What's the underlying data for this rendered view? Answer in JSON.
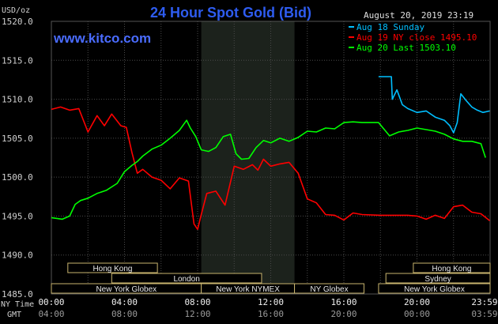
{
  "chart_data": {
    "type": "line",
    "title": "24 Hour Spot Gold (Bid)",
    "watermark": "www.kitco.com",
    "date_label": "August 20, 2019 23:19",
    "ylabel": "USD/oz",
    "ylim": [
      1485,
      1520
    ],
    "y_ticks": [
      "1520.0",
      "1515.0",
      "1510.0",
      "1505.0",
      "1500.0",
      "1495.0",
      "1490.0",
      "1485.0"
    ],
    "y_tick_values": [
      1520,
      1515,
      1510,
      1505,
      1500,
      1495,
      1490,
      1485
    ],
    "xlim": [
      0,
      24
    ],
    "x_row_label_ny": "NY Time",
    "x_row_label_gmt": "GMT",
    "x_ticks_ny": [
      "00:00",
      "04:00",
      "08:00",
      "12:00",
      "16:00",
      "20:00",
      "23:59"
    ],
    "x_ticks_gmt": [
      "04:00",
      "08:00",
      "12:00",
      "16:00",
      "20:00",
      "00:00",
      "03:59"
    ],
    "x_tick_hours": [
      0,
      4,
      8,
      12,
      16,
      20,
      23.98
    ],
    "shaded_hours": [
      8.2,
      13.3
    ],
    "legend": [
      {
        "label": "Aug 18 Sunday",
        "color": "#00bfff"
      },
      {
        "label": "Aug 19 NY close 1495.10",
        "color": "#ff0000"
      },
      {
        "label": "Aug 20 Last 1503.10",
        "color": "#00ff00"
      }
    ],
    "sessions": [
      {
        "label": "Hong Kong",
        "start": 0.9,
        "end": 5.8,
        "row": 0
      },
      {
        "label": "London",
        "start": 3.3,
        "end": 11.5,
        "row": 1
      },
      {
        "label": "New York Globex",
        "start": 0,
        "end": 8.2,
        "row": 2
      },
      {
        "label": "New York NYMEX",
        "start": 8.2,
        "end": 13.3,
        "row": 2
      },
      {
        "label": "NY Globex",
        "start": 13.3,
        "end": 17.1,
        "row": 2
      },
      {
        "label": "Hong Kong",
        "start": 19.8,
        "end": 24,
        "row": 0
      },
      {
        "label": "Sydney",
        "start": 18.3,
        "end": 24,
        "row": 1
      },
      {
        "label": "New York Globex",
        "start": 17.9,
        "end": 24,
        "row": 2
      }
    ],
    "session_border_color": "#c8b46e",
    "series": [
      {
        "name": "Aug 18 Sunday",
        "color": "#00bfff",
        "x": [
          17.9,
          18.6,
          18.65,
          18.9,
          19.2,
          19.5,
          20.0,
          20.5,
          21.0,
          21.5,
          21.8,
          22.0,
          22.2,
          22.4,
          22.7,
          23.0,
          23.3,
          23.6,
          23.98
        ],
        "y": [
          1512.9,
          1512.9,
          1510.0,
          1511.2,
          1509.3,
          1508.8,
          1508.3,
          1508.5,
          1507.7,
          1507.3,
          1506.6,
          1505.7,
          1507.0,
          1510.7,
          1509.8,
          1509.0,
          1508.6,
          1508.3,
          1508.5
        ]
      },
      {
        "name": "Aug 19 NY close 1495.10",
        "color": "#ff0000",
        "x": [
          0,
          0.5,
          1.0,
          1.5,
          2.0,
          2.5,
          2.9,
          3.3,
          3.8,
          4.1,
          4.4,
          4.7,
          5.0,
          5.5,
          6.0,
          6.5,
          7.0,
          7.5,
          7.8,
          8.0,
          8.2,
          8.5,
          9.0,
          9.5,
          10.0,
          10.5,
          11.0,
          11.3,
          11.6,
          12.0,
          12.5,
          13.0,
          13.5,
          14.0,
          14.5,
          15.0,
          15.5,
          16.0,
          16.5,
          17.0,
          18.0,
          19.0,
          19.5,
          20.0,
          20.5,
          21.0,
          21.5,
          22.0,
          22.5,
          23.0,
          23.5,
          23.98
        ],
        "y": [
          1508.7,
          1509.0,
          1508.6,
          1508.8,
          1505.8,
          1507.9,
          1506.6,
          1508.1,
          1506.6,
          1506.4,
          1503.2,
          1500.5,
          1501.0,
          1500.0,
          1499.6,
          1498.5,
          1499.9,
          1499.5,
          1494.0,
          1493.3,
          1495.2,
          1497.9,
          1498.2,
          1496.4,
          1501.4,
          1501.0,
          1501.6,
          1500.9,
          1502.3,
          1501.4,
          1501.7,
          1501.9,
          1500.5,
          1497.2,
          1496.7,
          1495.2,
          1495.1,
          1494.5,
          1495.4,
          1495.2,
          1495.1,
          1495.1,
          1495.1,
          1495.0,
          1494.6,
          1495.1,
          1494.7,
          1496.2,
          1496.4,
          1495.5,
          1495.3,
          1494.4
        ]
      },
      {
        "name": "Aug 20 Last 1503.10",
        "color": "#00ff00",
        "x": [
          0,
          0.6,
          1.0,
          1.3,
          1.6,
          2.0,
          2.5,
          3.0,
          3.6,
          4.0,
          4.4,
          4.7,
          5.0,
          5.5,
          6.0,
          6.5,
          7.0,
          7.4,
          7.6,
          7.9,
          8.2,
          8.6,
          9.0,
          9.4,
          9.8,
          10.1,
          10.4,
          10.8,
          11.2,
          11.6,
          12.0,
          12.5,
          13.0,
          13.5,
          14.0,
          14.5,
          15.0,
          15.5,
          16.0,
          16.5,
          17.0,
          17.5,
          17.9,
          18.5,
          19.0,
          19.5,
          20.0,
          20.5,
          21.0,
          21.5,
          22.0,
          22.5,
          23.0,
          23.5,
          23.75
        ],
        "y": [
          1494.8,
          1494.6,
          1495.0,
          1496.5,
          1497.0,
          1497.3,
          1497.9,
          1498.3,
          1499.2,
          1500.7,
          1501.5,
          1502.0,
          1502.7,
          1503.6,
          1504.1,
          1505.0,
          1506.0,
          1507.3,
          1506.3,
          1505.2,
          1503.5,
          1503.3,
          1503.8,
          1505.2,
          1505.5,
          1503.0,
          1502.3,
          1502.4,
          1503.8,
          1504.7,
          1504.4,
          1505.0,
          1504.6,
          1505.1,
          1505.9,
          1505.8,
          1506.3,
          1506.2,
          1507.0,
          1507.1,
          1507.0,
          1507.0,
          1507.0,
          1505.3,
          1505.8,
          1506.0,
          1506.3,
          1506.1,
          1505.9,
          1505.5,
          1504.9,
          1504.6,
          1504.6,
          1504.3,
          1502.5
        ]
      }
    ],
    "colors": {
      "title": "#2e5cf0",
      "watermark": "#4a6cff",
      "axis_text": "#d0d0d0",
      "grid": "#4a4a4a",
      "shade": "#1c221c",
      "background": "#000000"
    }
  }
}
